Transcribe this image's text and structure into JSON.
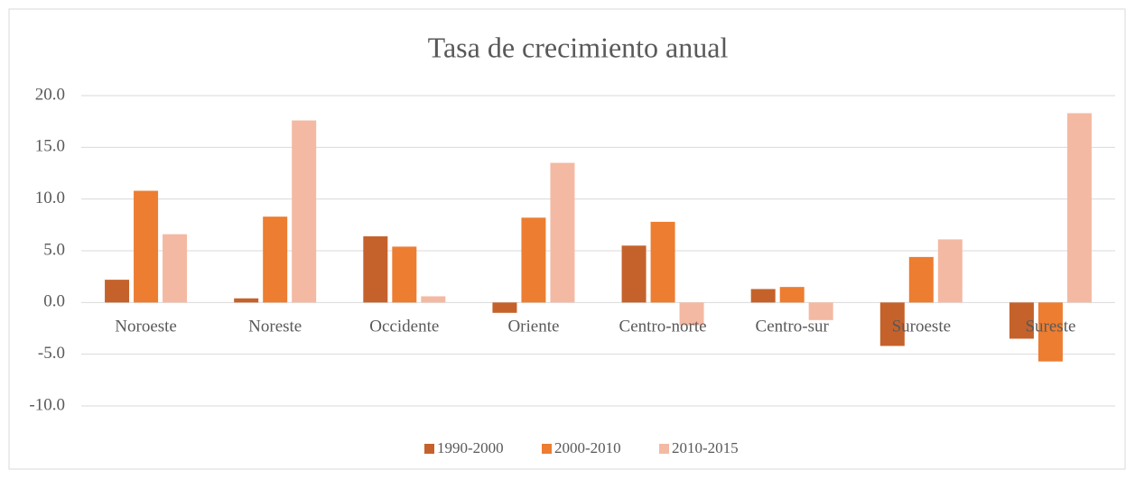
{
  "chart_data": {
    "type": "bar",
    "title": "Tasa de crecimiento anual",
    "categories": [
      "Noroeste",
      "Noreste",
      "Occidente",
      "Oriente",
      "Centro-norte",
      "Centro-sur",
      "Suroeste",
      "Sureste"
    ],
    "series": [
      {
        "name": "1990-2000",
        "color": "#c5622b",
        "values": [
          2.2,
          0.4,
          6.4,
          -1.0,
          5.5,
          1.3,
          -4.2,
          -3.5
        ]
      },
      {
        "name": "2000-2010",
        "color": "#ed7d31",
        "values": [
          10.8,
          8.3,
          5.4,
          8.2,
          7.8,
          1.5,
          4.4,
          -5.7
        ]
      },
      {
        "name": "2010-2015",
        "color": "#f4b9a3",
        "values": [
          6.6,
          17.6,
          0.6,
          13.5,
          -2.2,
          -1.7,
          6.1,
          18.3
        ]
      }
    ],
    "ylim": [
      -10,
      20
    ],
    "yticks": [
      {
        "value": -10,
        "label": "-10.0"
      },
      {
        "value": -5,
        "label": "-5.0"
      },
      {
        "value": 0,
        "label": "0.0"
      },
      {
        "value": 5,
        "label": "5.0"
      },
      {
        "value": 10,
        "label": "10.0"
      },
      {
        "value": 15,
        "label": "15.0"
      },
      {
        "value": 20,
        "label": "20.0"
      }
    ],
    "grid": true,
    "legend": "bottom"
  }
}
